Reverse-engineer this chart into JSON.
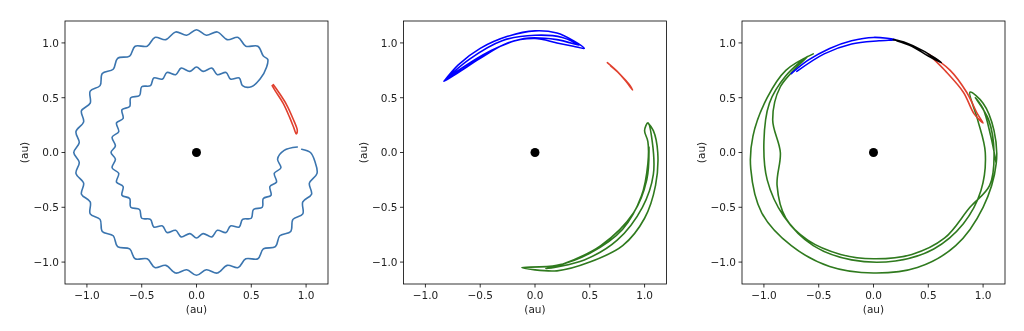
{
  "chart_data": [
    {
      "type": "line",
      "xlabel": "(au)",
      "ylabel": "(au)",
      "xlim": [
        -1.2,
        1.2
      ],
      "ylim": [
        -1.2,
        1.2
      ],
      "xticks": [
        {
          "value": -1,
          "label": "−1.0"
        },
        {
          "value": -0.5,
          "label": "−0.5"
        },
        {
          "value": 0,
          "label": "0.0"
        },
        {
          "value": 0.5,
          "label": "0.5"
        },
        {
          "value": 1,
          "label": "1.0"
        }
      ],
      "yticks": [
        {
          "value": -1,
          "label": "−1.0"
        },
        {
          "value": -0.5,
          "label": "−0.5"
        },
        {
          "value": 0,
          "label": "0.0"
        },
        {
          "value": 0.5,
          "label": "0.5"
        },
        {
          "value": 1,
          "label": "1.0"
        }
      ],
      "series": [
        {
          "color": "#3b75af",
          "x": [
            0.96,
            1.04,
            1.08,
            1.1,
            1.03,
            1.05,
            0.97,
            0.97,
            0.88,
            0.86,
            0.76,
            0.72,
            0.61,
            0.56,
            0.45,
            0.38,
            0.28,
            0.19,
            0.09,
            0,
            -0.09,
            -0.19,
            -0.28,
            -0.38,
            -0.45,
            -0.56,
            -0.61,
            -0.72,
            -0.76,
            -0.86,
            -0.88,
            -0.97,
            -0.97,
            -1.05,
            -1.03,
            -1.1,
            -1.07,
            -1.12,
            -1.07,
            -1.1,
            -1.03,
            -1.05,
            -0.97,
            -0.97,
            -0.88,
            -0.86,
            -0.76,
            -0.72,
            -0.61,
            -0.56,
            -0.45,
            -0.38,
            -0.28,
            -0.19,
            -0.09,
            0,
            0.09,
            0.19,
            0.28,
            0.38,
            0.45,
            0.56,
            0.61,
            0.65,
            0.64,
            0.58,
            0.5,
            0.42,
            0.39,
            0.31,
            0.27,
            0.19,
            0.14,
            0.06,
            0,
            -0.06,
            -0.14,
            -0.19,
            -0.27,
            -0.31,
            -0.39,
            -0.42,
            -0.5,
            -0.52,
            -0.6,
            -0.61,
            -0.68,
            -0.67,
            -0.73,
            -0.71,
            -0.77,
            -0.74,
            -0.78,
            -0.74,
            -0.77,
            -0.71,
            -0.73,
            -0.67,
            -0.68,
            -0.61,
            -0.6,
            -0.52,
            -0.5,
            -0.42,
            -0.39,
            -0.31,
            -0.27,
            -0.19,
            -0.14,
            -0.06,
            0,
            0.06,
            0.14,
            0.19,
            0.27,
            0.31,
            0.39,
            0.42,
            0.5,
            0.52,
            0.6,
            0.61,
            0.68,
            0.67,
            0.73,
            0.71,
            0.77,
            0.74,
            0.8,
            0.92
          ],
          "values": [
            0.03,
            0.0,
            -0.08,
            -0.19,
            -0.28,
            -0.38,
            -0.45,
            -0.56,
            -0.61,
            -0.72,
            -0.76,
            -0.86,
            -0.88,
            -0.97,
            -0.97,
            -1.05,
            -1.03,
            -1.1,
            -1.07,
            -1.12,
            -1.07,
            -1.1,
            -1.03,
            -1.05,
            -0.97,
            -0.97,
            -0.88,
            -0.86,
            -0.76,
            -0.72,
            -0.61,
            -0.56,
            -0.45,
            -0.38,
            -0.28,
            -0.19,
            -0.09,
            0,
            0.09,
            0.19,
            0.28,
            0.38,
            0.45,
            0.56,
            0.61,
            0.72,
            0.76,
            0.86,
            0.88,
            0.97,
            0.97,
            1.05,
            1.03,
            1.1,
            1.07,
            1.12,
            1.07,
            1.1,
            1.03,
            1.05,
            0.97,
            0.97,
            0.88,
            0.85,
            0.78,
            0.67,
            0.6,
            0.61,
            0.68,
            0.67,
            0.73,
            0.71,
            0.77,
            0.74,
            0.78,
            0.74,
            0.77,
            0.71,
            0.73,
            0.67,
            0.68,
            0.61,
            0.6,
            0.52,
            0.5,
            0.42,
            0.39,
            0.31,
            0.27,
            0.19,
            0.14,
            0.06,
            0,
            -0.06,
            -0.14,
            -0.19,
            -0.27,
            -0.31,
            -0.39,
            -0.42,
            -0.5,
            -0.52,
            -0.6,
            -0.61,
            -0.68,
            -0.67,
            -0.73,
            -0.71,
            -0.77,
            -0.74,
            -0.78,
            -0.74,
            -0.77,
            -0.71,
            -0.73,
            -0.67,
            -0.68,
            -0.61,
            -0.6,
            -0.52,
            -0.5,
            -0.42,
            -0.39,
            -0.31,
            -0.27,
            -0.19,
            -0.14,
            -0.06,
            0.02,
            0.05
          ]
        },
        {
          "color": "#e0402e",
          "x": [
            0.7,
            0.75,
            0.82,
            0.88,
            0.92,
            0.91,
            0.89,
            0.85,
            0.79,
            0.72,
            0.69
          ],
          "values": [
            0.62,
            0.55,
            0.44,
            0.31,
            0.2,
            0.17,
            0.22,
            0.32,
            0.45,
            0.56,
            0.61
          ]
        },
        {
          "type": "scatter",
          "marker": "circle",
          "color": "#000000",
          "x": [
            0
          ],
          "values": [
            0
          ]
        }
      ]
    },
    {
      "type": "line",
      "xlabel": "(au)",
      "ylabel": "(au)",
      "xlim": [
        -1.2,
        1.2
      ],
      "ylim": [
        -1.2,
        1.2
      ],
      "xticks": [
        {
          "value": -1,
          "label": "−1.0"
        },
        {
          "value": -0.5,
          "label": "−0.5"
        },
        {
          "value": 0,
          "label": "0.0"
        },
        {
          "value": 0.5,
          "label": "0.5"
        },
        {
          "value": 1,
          "label": "1.0"
        }
      ],
      "yticks": [
        {
          "value": -1,
          "label": "−1.0"
        },
        {
          "value": -0.5,
          "label": "−0.5"
        },
        {
          "value": 0,
          "label": "0.0"
        },
        {
          "value": 0.5,
          "label": "0.5"
        },
        {
          "value": 1,
          "label": "1.0"
        }
      ],
      "series": [
        {
          "color": "#0000ff",
          "x": [
            -0.83,
            -0.7,
            -0.5,
            -0.25,
            0,
            0.2,
            0.35,
            0.45,
            0.35,
            0.2,
            0,
            -0.25,
            -0.5,
            -0.7,
            -0.83,
            -0.6,
            -0.3,
            0,
            0.25,
            0.4,
            0.2,
            -0.1,
            -0.4,
            -0.8
          ],
          "values": [
            0.65,
            0.8,
            0.95,
            1.06,
            1.11,
            1.09,
            1.02,
            0.95,
            0.97,
            1.0,
            1.04,
            1.0,
            0.86,
            0.73,
            0.65,
            0.85,
            1.02,
            1.07,
            1.05,
            0.98,
            1.03,
            1.04,
            0.93,
            0.68
          ]
        },
        {
          "color": "#e0402e",
          "x": [
            0.66,
            0.75,
            0.83,
            0.89,
            0.86,
            0.78,
            0.69
          ],
          "values": [
            0.82,
            0.74,
            0.65,
            0.57,
            0.62,
            0.71,
            0.79
          ]
        },
        {
          "color": "#2f7a1e",
          "x": [
            1.03,
            1.08,
            1.12,
            1.1,
            1.0,
            0.8,
            0.5,
            0.2,
            -0.12,
            0.2,
            0.5,
            0.8,
            0.97,
            1.03,
            1.03,
            1.0,
            1.03,
            1.07,
            1.08,
            0.98,
            0.75,
            0.45,
            0.1,
            0.25,
            0.6,
            0.9,
            1.02,
            1.04
          ],
          "values": [
            0.27,
            0.2,
            0.0,
            -0.3,
            -0.6,
            -0.85,
            -1.0,
            -1.08,
            -1.05,
            -1.03,
            -0.92,
            -0.7,
            -0.4,
            -0.1,
            0.1,
            0.2,
            0.27,
            0.1,
            -0.2,
            -0.5,
            -0.8,
            -0.98,
            -1.06,
            -1.02,
            -0.85,
            -0.55,
            -0.25,
            0.05
          ]
        },
        {
          "type": "scatter",
          "marker": "circle",
          "color": "#000000",
          "x": [
            0
          ],
          "values": [
            0
          ]
        }
      ]
    },
    {
      "type": "line",
      "xlabel": "(au)",
      "ylabel": "(au)",
      "xlim": [
        -1.2,
        1.2
      ],
      "ylim": [
        -1.2,
        1.2
      ],
      "xticks": [
        {
          "value": -1,
          "label": "−1.0"
        },
        {
          "value": -0.5,
          "label": "−0.5"
        },
        {
          "value": 0,
          "label": "0.0"
        },
        {
          "value": 0.5,
          "label": "0.5"
        },
        {
          "value": 1,
          "label": "1.0"
        }
      ],
      "yticks": [
        {
          "value": -1,
          "label": "−1.0"
        },
        {
          "value": -0.5,
          "label": "−0.5"
        },
        {
          "value": 0,
          "label": "0.0"
        },
        {
          "value": 0.5,
          "label": "0.5"
        },
        {
          "value": 1,
          "label": "1.0"
        }
      ],
      "series": [
        {
          "color": "#2f7a1e",
          "x": [
            -0.55,
            -0.8,
            -0.97,
            -1.1,
            -1.12,
            -1.02,
            -0.75,
            -0.4,
            0,
            0.4,
            0.75,
            1.0,
            1.12,
            1.1,
            1.0,
            0.88,
            0.95,
            1.02,
            0.98,
            0.82,
            0.55,
            0.2,
            -0.2,
            -0.55,
            -0.82,
            -0.97,
            -1.0,
            -0.95,
            -0.8,
            -0.6,
            -0.85,
            -0.92,
            -0.85,
            -0.88,
            -0.8,
            -0.6,
            -0.3,
            0,
            0.35,
            0.65,
            0.88,
            1.06,
            1.1,
            1.05,
            0.93,
            1.0,
            1.07,
            1.12
          ],
          "values": [
            0.9,
            0.75,
            0.5,
            0.15,
            -0.15,
            -0.55,
            -0.85,
            -1.04,
            -1.1,
            -1.05,
            -0.85,
            -0.5,
            -0.1,
            0.2,
            0.45,
            0.55,
            0.3,
            0.0,
            -0.35,
            -0.65,
            -0.88,
            -0.99,
            -0.98,
            -0.85,
            -0.58,
            -0.25,
            0.1,
            0.45,
            0.7,
            0.88,
            0.6,
            0.3,
            0.0,
            -0.3,
            -0.6,
            -0.8,
            -0.93,
            -0.97,
            -0.93,
            -0.78,
            -0.5,
            -0.3,
            0.0,
            0.3,
            0.5,
            0.4,
            0.15,
            -0.1
          ]
        },
        {
          "color": "#0000ff",
          "x": [
            -0.75,
            -0.6,
            -0.4,
            -0.2,
            0,
            0.2,
            0.05,
            -0.2,
            -0.45,
            -0.7
          ],
          "values": [
            0.72,
            0.84,
            0.95,
            1.02,
            1.05,
            1.03,
            1.02,
            0.99,
            0.9,
            0.74
          ]
        },
        {
          "color": "#e0402e",
          "x": [
            0.5,
            0.7,
            0.85,
            0.95,
            1.0,
            0.92,
            0.82,
            0.65,
            0.53
          ],
          "values": [
            0.9,
            0.75,
            0.55,
            0.35,
            0.27,
            0.35,
            0.55,
            0.75,
            0.87
          ]
        },
        {
          "color": "#000000",
          "x": [
            0.18,
            0.3,
            0.45,
            0.62,
            0.5,
            0.35,
            0.21
          ],
          "values": [
            1.03,
            1.0,
            0.93,
            0.82,
            0.88,
            0.97,
            1.02
          ]
        },
        {
          "type": "scatter",
          "marker": "circle",
          "color": "#000000",
          "x": [
            0
          ],
          "values": [
            0
          ]
        }
      ]
    }
  ]
}
